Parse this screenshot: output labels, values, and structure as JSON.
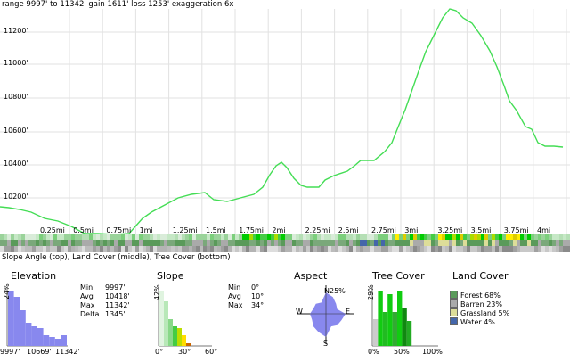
{
  "header": {
    "text": "range 9997' to 11342'  gain 1611'  loss 1253'  exaggeration 6x"
  },
  "profile": {
    "y_labels": [
      "11200'",
      "11000'",
      "10800'",
      "10600'",
      "10400'",
      "10200'"
    ],
    "x_labels": [
      "0.25mi",
      "0.5mi",
      "0.75mi",
      "1mi",
      "1.25mi",
      "1.5mi",
      "1.75mi",
      "2mi",
      "2.25mi",
      "2.5mi",
      "2.75mi",
      "3mi",
      "3.25mi",
      "3.5mi",
      "3.75mi",
      "4mi"
    ],
    "line_color": "#44dd55"
  },
  "strips_label": "Slope Angle (top), Land Cover (middle), Tree Cover (bottom)",
  "elevation": {
    "title": "Elevation",
    "pct": "24%",
    "stats": [
      {
        "k": "Min",
        "v": "9997'"
      },
      {
        "k": "Avg",
        "v": "10418'"
      },
      {
        "k": "Max",
        "v": "11342'"
      },
      {
        "k": "Delta",
        "v": "1345'"
      }
    ],
    "x_labels": [
      "9997'",
      "10669'",
      "11342'"
    ],
    "color": "#8888ee"
  },
  "slope": {
    "title": "Slope",
    "pct": "42%",
    "stats": [
      {
        "k": "Min",
        "v": "0°"
      },
      {
        "k": "Avg",
        "v": "10°"
      },
      {
        "k": "Max",
        "v": "34°"
      }
    ],
    "x_labels": [
      "0°",
      "30°",
      "60°"
    ]
  },
  "aspect": {
    "title": "Aspect",
    "n": "N",
    "pct": "25%",
    "e": "E",
    "w": "W",
    "s": "S",
    "color": "#8888ee"
  },
  "tree_cover": {
    "title": "Tree Cover",
    "pct": "29%",
    "x_labels": [
      "0%",
      "50%",
      "100%"
    ],
    "color": "#11cc11"
  },
  "land_cover": {
    "title": "Land Cover",
    "items": [
      {
        "label": "Forest 68%",
        "color": "#5a9a5a"
      },
      {
        "label": "Barren 23%",
        "color": "#aaaaaa"
      },
      {
        "label": "Grassland 5%",
        "color": "#dddd99"
      },
      {
        "label": "Water 4%",
        "color": "#4466aa"
      }
    ]
  }
}
